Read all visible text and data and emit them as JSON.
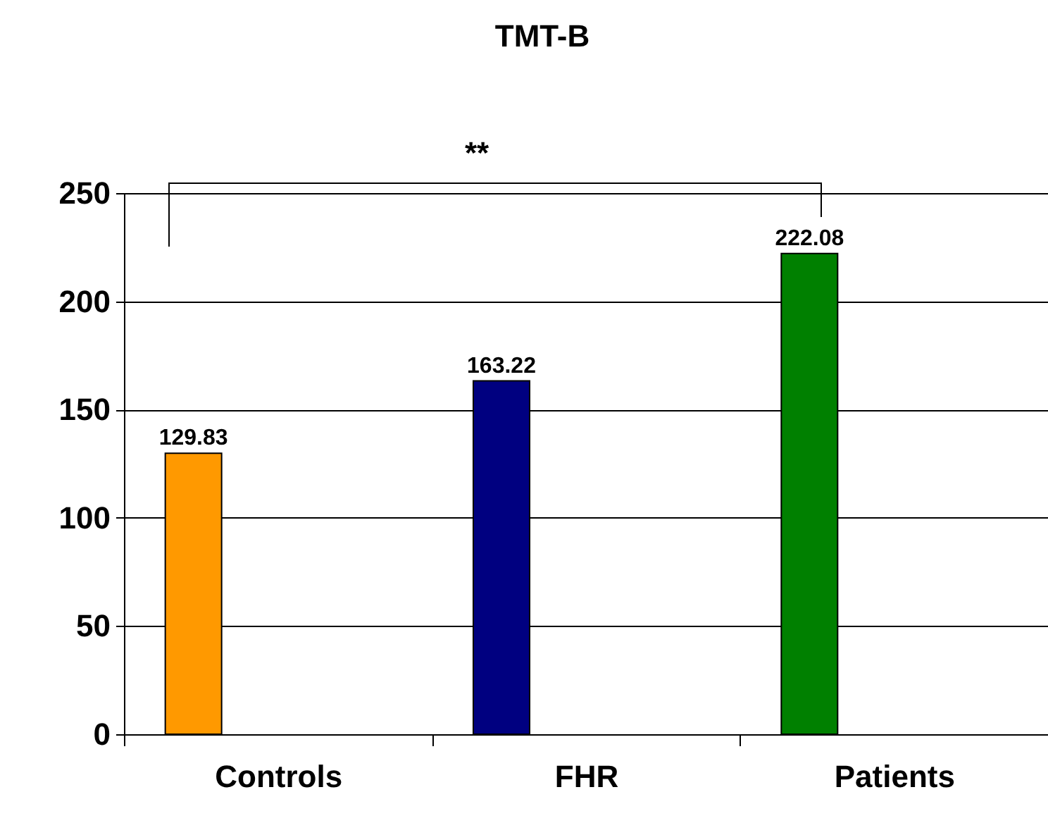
{
  "chart_data": {
    "type": "bar",
    "title": "TMT-B",
    "categories": [
      "Controls",
      "FHR",
      "Patients"
    ],
    "values": [
      129.83,
      163.22,
      222.08
    ],
    "colors": [
      "#ff9900",
      "#000080",
      "#008000"
    ],
    "ylim": [
      0,
      250
    ],
    "yticks": [
      0,
      50,
      100,
      150,
      200,
      250
    ],
    "grid": "y",
    "data_labels": true,
    "annotations": [
      "**"
    ]
  }
}
